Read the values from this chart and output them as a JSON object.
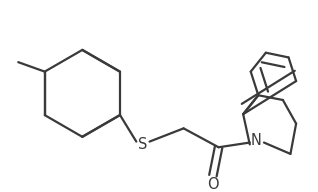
{
  "bg_color": "#ffffff",
  "line_color": "#3a3a3a",
  "line_width": 1.6,
  "atom_labels": {
    "S": {
      "text": "S",
      "fontsize": 10.5
    },
    "O": {
      "text": "O",
      "fontsize": 10.5
    },
    "N": {
      "text": "N",
      "fontsize": 10.5
    }
  },
  "figsize": [
    3.18,
    1.92
  ],
  "dpi": 100
}
